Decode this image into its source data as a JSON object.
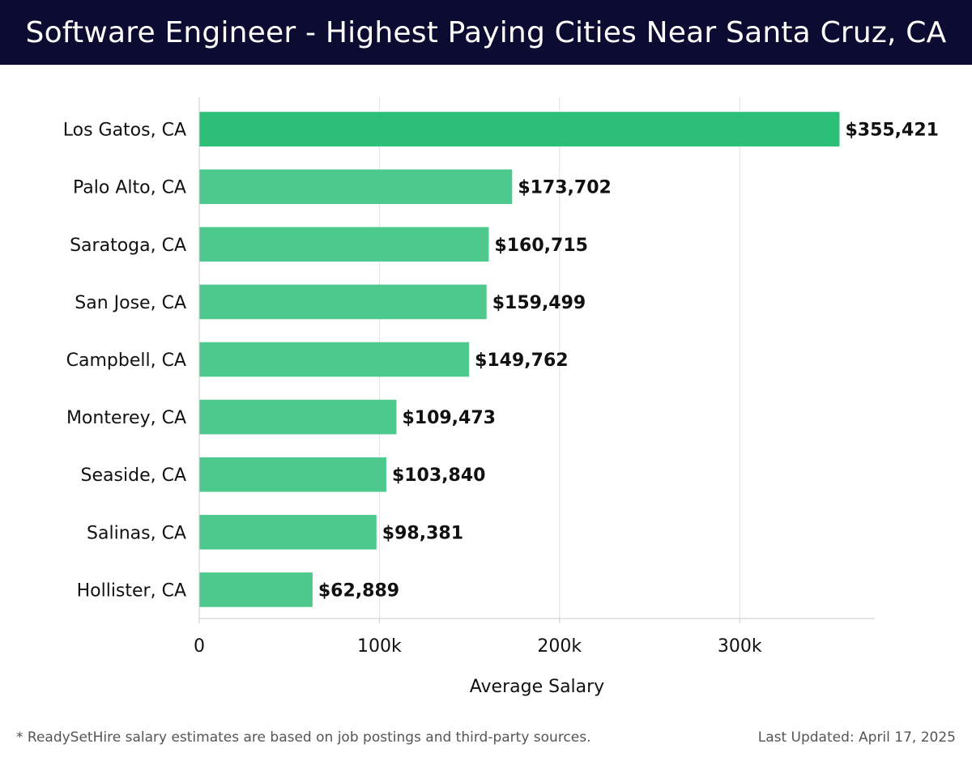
{
  "header": {
    "title": "Software Engineer - Highest Paying Cities Near Santa Cruz, CA"
  },
  "chart_data": {
    "type": "bar",
    "orientation": "horizontal",
    "title": "Software Engineer - Highest Paying Cities Near Santa Cruz, CA",
    "xlabel": "Average Salary",
    "ylabel": "",
    "xlim": [
      0,
      375000
    ],
    "grid": true,
    "categories": [
      "Los Gatos, CA",
      "Palo Alto, CA",
      "Saratoga, CA",
      "San Jose, CA",
      "Campbell, CA",
      "Monterey, CA",
      "Seaside, CA",
      "Salinas, CA",
      "Hollister, CA"
    ],
    "values": [
      355421,
      173702,
      160715,
      159499,
      149762,
      109473,
      103840,
      98381,
      62889
    ],
    "value_labels": [
      "$355,421",
      "$173,702",
      "$160,715",
      "$159,499",
      "$149,762",
      "$109,473",
      "$103,840",
      "$98,381",
      "$62,889"
    ],
    "x_ticks": [
      0,
      100000,
      200000,
      300000
    ],
    "x_tick_labels": [
      "0",
      "100k",
      "200k",
      "300k"
    ],
    "colors": {
      "top_bar": "#2bbf78",
      "bar": "#4ec98e",
      "grid": "#e2e2e2",
      "axis": "#cccccc"
    }
  },
  "footer": {
    "note": "* ReadySetHire salary estimates are based on job postings and third-party sources.",
    "updated": "Last Updated: April 17, 2025"
  }
}
